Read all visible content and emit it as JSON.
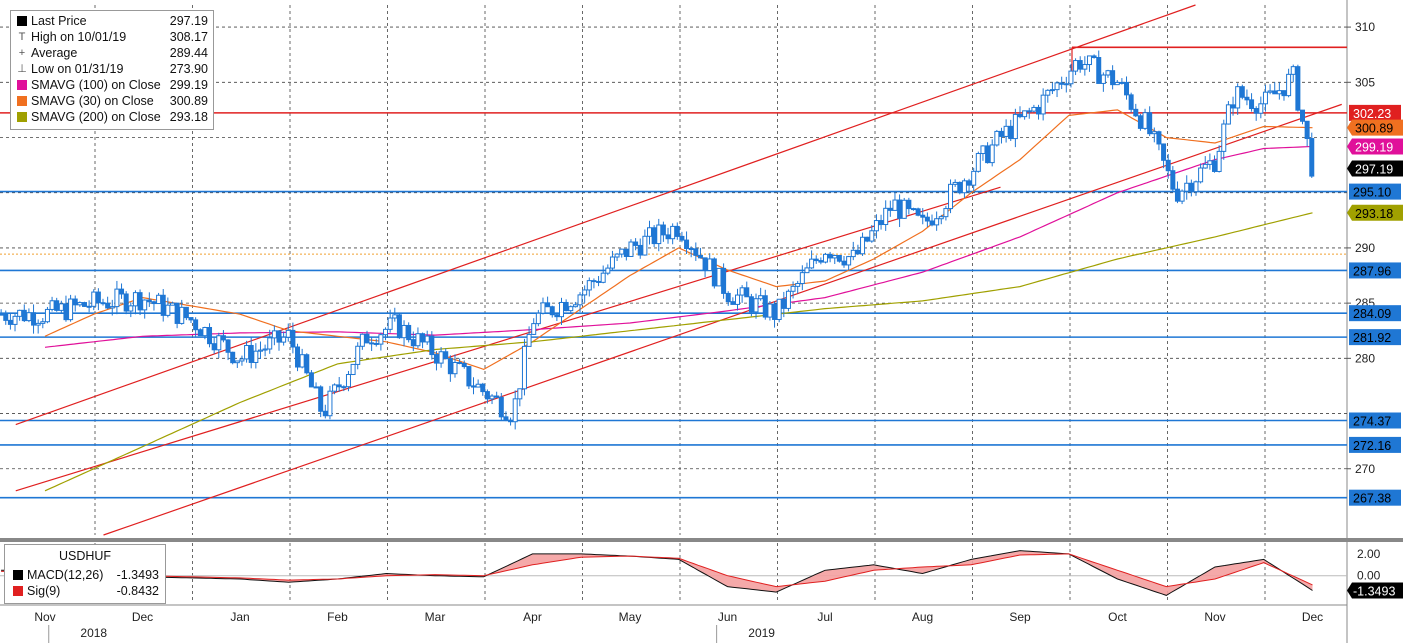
{
  "chart_data": {
    "type": "line",
    "instrument": "USDHUF",
    "y_ticks": [
      270,
      280,
      285,
      290,
      305,
      310
    ],
    "ylim": [
      264,
      312
    ],
    "x_month_labels": [
      "Nov",
      "Dec",
      "Jan",
      "Feb",
      "Mar",
      "Apr",
      "May",
      "Jun",
      "Jul",
      "Aug",
      "Sep",
      "Oct",
      "Nov",
      "Dec"
    ],
    "x_year_labels": [
      "2018",
      "2019"
    ],
    "series": [
      {
        "name": "Last Price",
        "color": "#1f77d4",
        "x_month_index": [
          0,
          0.5,
          1,
          1.5,
          2,
          2.5,
          2.85,
          3.3,
          3.6,
          4,
          4.5,
          4.8,
          5,
          5.5,
          6,
          6.5,
          7,
          7.5,
          8,
          8.3,
          8.7,
          9,
          9.5,
          9.8,
          10.2,
          10.6,
          11,
          11.3,
          11.6,
          12,
          12.2,
          12.5,
          12.8,
          13
        ],
        "values": [
          284,
          285,
          285.5,
          283.5,
          280,
          282,
          275,
          282,
          283,
          280.5,
          277,
          275,
          283.5,
          286,
          290,
          292,
          286,
          284,
          290,
          289,
          294,
          292,
          297,
          300,
          303,
          307,
          305,
          301,
          295,
          298,
          304,
          303,
          305.5,
          297.19
        ]
      },
      {
        "name": "SMAVG (100)  on Close",
        "color": "#e0109a",
        "x_month_index": [
          0,
          1,
          2,
          3,
          4,
          5,
          6,
          7,
          8,
          9,
          10,
          11,
          12,
          12.5,
          13
        ],
        "values": [
          281,
          282,
          282.3,
          282.4,
          282.1,
          282.6,
          283.2,
          284.3,
          285.5,
          287.8,
          291,
          295,
          298,
          299,
          299.19
        ]
      },
      {
        "name": "SMAVG (30)  on Close",
        "color": "#f07020",
        "x_month_index": [
          0,
          0.5,
          1,
          2,
          2.5,
          3,
          3.5,
          4,
          4.5,
          5,
          5.5,
          6,
          6.5,
          7,
          7.5,
          8,
          8.5,
          9,
          9.5,
          10,
          10.5,
          11,
          11.5,
          12,
          12.5,
          13
        ],
        "values": [
          282,
          284,
          285.5,
          284,
          282.5,
          282,
          281.5,
          280.5,
          279,
          281.5,
          284.5,
          287.5,
          290,
          288,
          286.5,
          287,
          289,
          291.5,
          295,
          298,
          302,
          302.5,
          300,
          299.5,
          301,
          300.89
        ]
      },
      {
        "name": "SMAVG (200)  on Close",
        "color": "#a0a000",
        "x_month_index": [
          0,
          1,
          2,
          3,
          4,
          5,
          6,
          7,
          8,
          9,
          10,
          11,
          12,
          13
        ],
        "values": [
          268,
          272,
          276,
          279.5,
          280.8,
          281.5,
          282.5,
          283.5,
          284.5,
          285.2,
          286.5,
          289,
          291,
          293.18
        ]
      }
    ],
    "horizontal_levels": [
      {
        "value": 308.17,
        "label": "",
        "color": "#e02020"
      },
      {
        "value": 302.23,
        "label": "302.23",
        "color": "#e02020",
        "tag_bg": "#e02020",
        "tag_fg": "#ffffff"
      },
      {
        "value": 295.1,
        "label": "295.10",
        "color": "#1f77d4",
        "tag_bg": "#1f77d4",
        "tag_fg": "#000000"
      },
      {
        "value": 287.96,
        "label": "287.96",
        "color": "#1f77d4",
        "tag_bg": "#1f77d4",
        "tag_fg": "#000000"
      },
      {
        "value": 284.09,
        "label": "284.09",
        "color": "#1f77d4",
        "tag_bg": "#1f77d4",
        "tag_fg": "#000000"
      },
      {
        "value": 281.92,
        "label": "281.92",
        "color": "#1f77d4",
        "tag_bg": "#1f77d4",
        "tag_fg": "#000000"
      },
      {
        "value": 274.37,
        "label": "274.37",
        "color": "#1f77d4",
        "tag_bg": "#1f77d4",
        "tag_fg": "#000000"
      },
      {
        "value": 272.16,
        "label": "272.16",
        "color": "#1f77d4",
        "tag_bg": "#1f77d4",
        "tag_fg": "#000000"
      },
      {
        "value": 267.38,
        "label": "267.38",
        "color": "#1f77d4",
        "tag_bg": "#1f77d4",
        "tag_fg": "#000000"
      }
    ],
    "value_tags": [
      {
        "value": 300.89,
        "label": "300.89",
        "bg": "#f07020",
        "fg": "#000000"
      },
      {
        "value": 299.19,
        "label": "299.19",
        "bg": "#e0109a",
        "fg": "#ffffff"
      },
      {
        "value": 297.19,
        "label": "297.19",
        "bg": "#000000",
        "fg": "#ffffff"
      },
      {
        "value": 293.18,
        "label": "293.18",
        "bg": "#a0a000",
        "fg": "#000000"
      }
    ],
    "average_value": 289.44,
    "trend_channel": {
      "color": "#e02020",
      "upper": [
        [
          -0.3,
          274
        ],
        [
          11.8,
          312
        ]
      ],
      "lower": [
        [
          0.6,
          264
        ],
        [
          13.3,
          303
        ]
      ],
      "mid": [
        [
          -0.3,
          268
        ],
        [
          9.8,
          295.5
        ]
      ]
    },
    "macd": {
      "ylim": [
        -2.5,
        3
      ],
      "y_ticks": [
        2.0,
        0.0
      ],
      "y_tick_labels": [
        "2.00",
        "0.00"
      ],
      "current_tag": {
        "value": -1.3493,
        "label": "-1.3493"
      },
      "x_month_index": [
        0,
        0.5,
        1,
        1.5,
        2,
        2.5,
        3,
        3.5,
        4,
        4.5,
        5,
        5.5,
        6,
        6.5,
        7,
        7.5,
        8,
        8.5,
        9,
        9.5,
        10,
        10.5,
        11,
        11.5,
        12,
        12.5,
        13
      ],
      "macd": [
        0.5,
        0.2,
        -0.1,
        -0.2,
        -0.3,
        -0.6,
        -0.3,
        0.2,
        0.0,
        -0.1,
        2.0,
        2.0,
        1.8,
        1.5,
        -1.0,
        -1.5,
        0.5,
        1.0,
        0.2,
        1.5,
        2.3,
        2.0,
        -0.3,
        -1.8,
        0.8,
        1.5,
        -1.35
      ],
      "signal": [
        0.4,
        0.3,
        0.0,
        -0.1,
        -0.2,
        -0.4,
        -0.3,
        0.0,
        0.1,
        0.0,
        1.0,
        1.7,
        1.8,
        1.6,
        0.0,
        -1.0,
        -0.5,
        0.5,
        0.8,
        1.0,
        1.9,
        2.0,
        0.5,
        -1.0,
        -0.3,
        1.2,
        -0.84
      ]
    }
  },
  "legend": {
    "last_price": {
      "label": "Last Price",
      "value": "297.19",
      "color": "#000000"
    },
    "high": {
      "label": "High on 10/01/19",
      "value": "308.17",
      "glyph": "T"
    },
    "average": {
      "label": "Average",
      "value": "289.44",
      "glyph": "+"
    },
    "low": {
      "label": "Low on 01/31/19",
      "value": "273.90",
      "glyph": "⊥"
    },
    "sma100": {
      "label": "SMAVG (100)  on Close",
      "value": "299.19",
      "color": "#e0109a"
    },
    "sma30": {
      "label": "SMAVG (30)  on Close",
      "value": "300.89",
      "color": "#f07020"
    },
    "sma200": {
      "label": "SMAVG (200)  on Close",
      "value": "293.18",
      "color": "#a0a000"
    },
    "collapse_glyph": "⊟"
  },
  "macd_legend": {
    "title": "USDHUF",
    "macd": {
      "label": "MACD(12,26)",
      "value": "-1.3493",
      "color": "#000000"
    },
    "sig": {
      "label": "Sig(9)",
      "value": "-0.8432",
      "color": "#e02020"
    }
  }
}
